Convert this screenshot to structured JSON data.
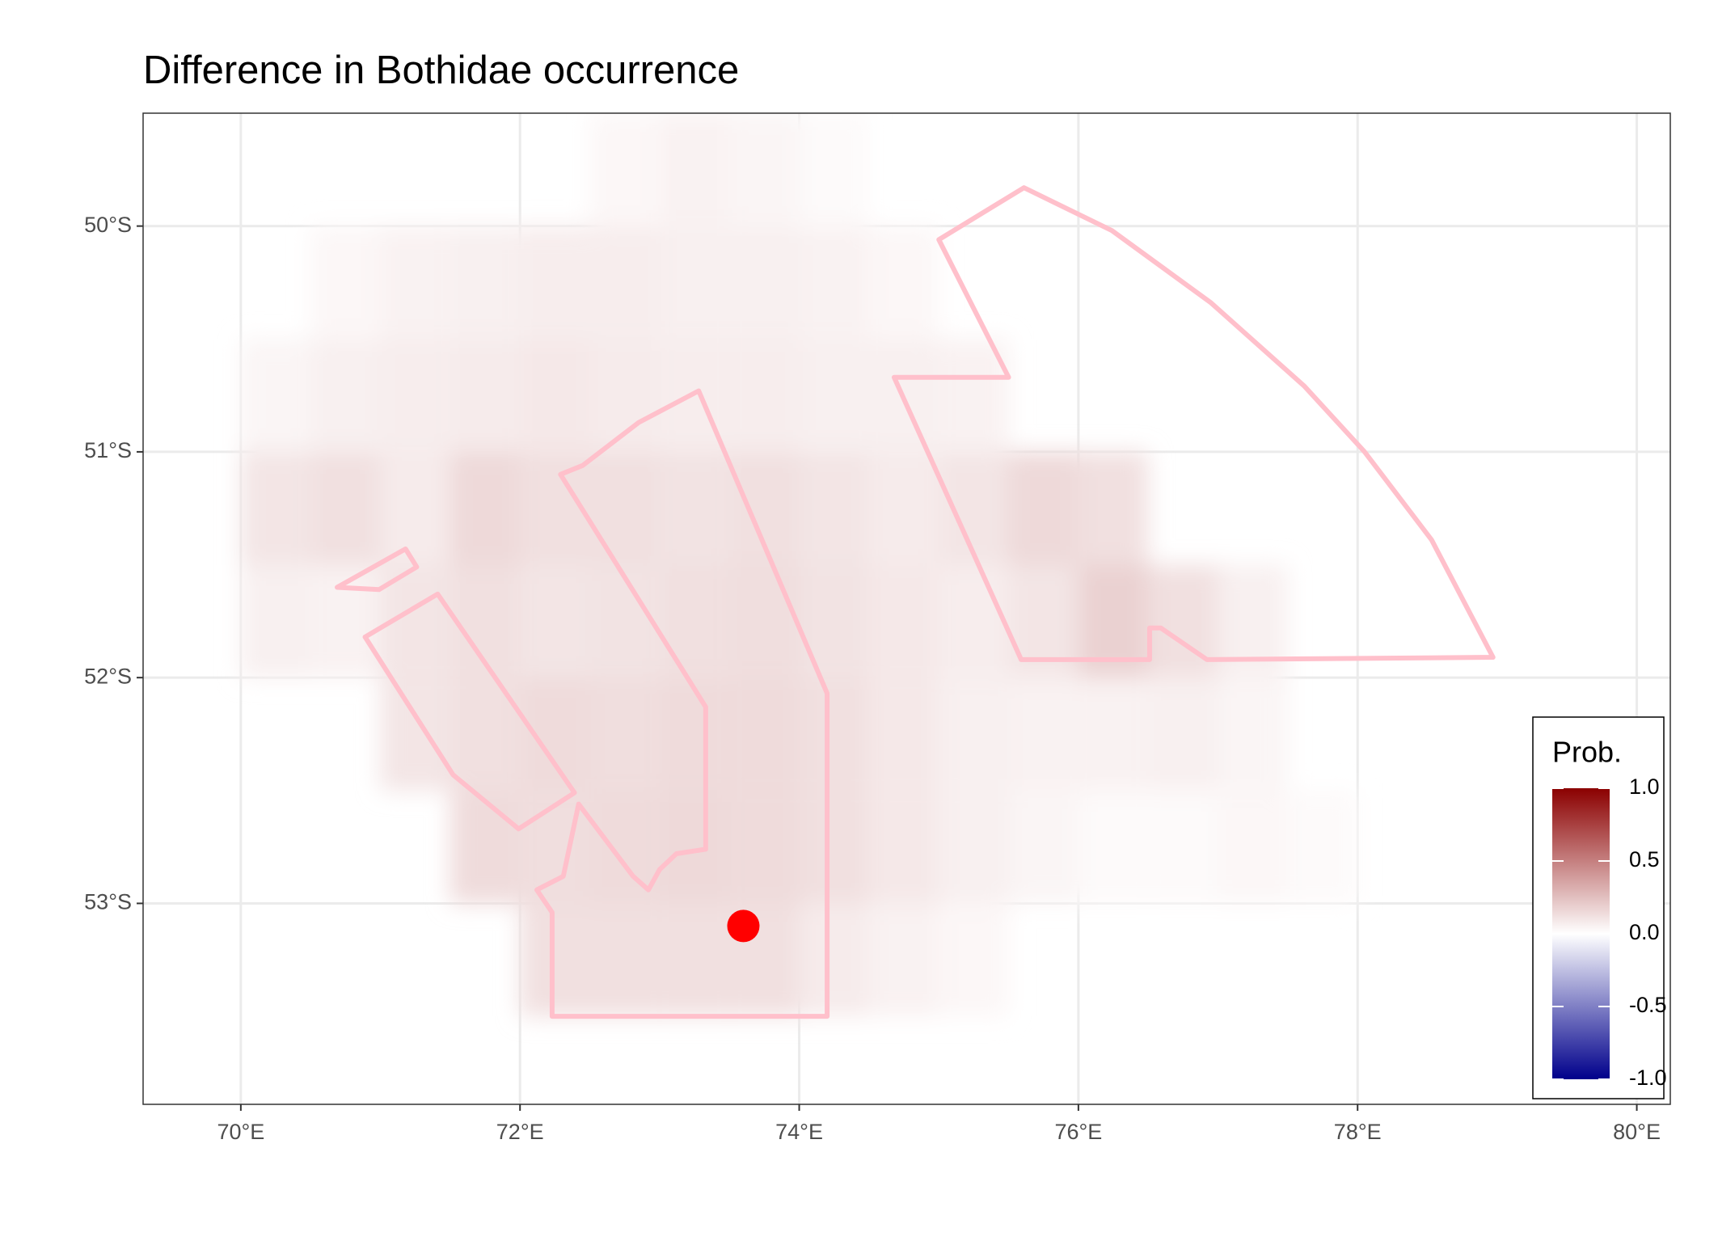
{
  "chart_data": {
    "type": "map",
    "title": "Difference in  Bothidae occurrence",
    "xlim": [
      69.3,
      80.24
    ],
    "ylim": [
      -53.89,
      -49.5
    ],
    "xticks": [
      {
        "value": 70,
        "label": "70°E"
      },
      {
        "value": 72,
        "label": "72°E"
      },
      {
        "value": 74,
        "label": "74°E"
      },
      {
        "value": 76,
        "label": "76°E"
      },
      {
        "value": 78,
        "label": "78°E"
      },
      {
        "value": 80,
        "label": "80°E"
      }
    ],
    "yticks": [
      {
        "value": -50,
        "label": "50°S"
      },
      {
        "value": -51,
        "label": "51°S"
      },
      {
        "value": -52,
        "label": "52°S"
      },
      {
        "value": -53,
        "label": "53°S"
      }
    ],
    "grid": true,
    "raster": {
      "lon": [
        70.25,
        70.75,
        71.25,
        71.75,
        72.25,
        72.75,
        73.25,
        73.75,
        74.25,
        74.75,
        75.25,
        75.75,
        76.25,
        76.75,
        77.25,
        77.75
      ],
      "lat": [
        -49.75,
        -50.25,
        -50.75,
        -51.25,
        -51.75,
        -52.25,
        -52.75,
        -53.25
      ],
      "values": [
        [
          null,
          null,
          null,
          null,
          null,
          0.03,
          0.05,
          0.04,
          0.02,
          null,
          null,
          null,
          null,
          null,
          null,
          null
        ],
        [
          null,
          0.03,
          0.05,
          0.06,
          0.07,
          0.07,
          0.06,
          0.06,
          0.05,
          0.03,
          null,
          null,
          null,
          null,
          null,
          null
        ],
        [
          0.04,
          0.06,
          0.07,
          0.08,
          0.09,
          0.08,
          0.07,
          0.07,
          0.06,
          0.06,
          0.05,
          null,
          null,
          null,
          null,
          null
        ],
        [
          0.1,
          0.12,
          0.08,
          0.15,
          0.12,
          0.12,
          0.11,
          0.12,
          0.1,
          0.08,
          0.1,
          0.15,
          0.12,
          null,
          null,
          null
        ],
        [
          0.06,
          0.05,
          0.1,
          0.12,
          0.1,
          0.11,
          0.12,
          0.13,
          0.11,
          0.09,
          0.07,
          0.1,
          0.18,
          0.12,
          0.06,
          null
        ],
        [
          null,
          null,
          0.1,
          0.12,
          0.14,
          0.13,
          0.14,
          0.14,
          0.12,
          0.09,
          0.06,
          0.05,
          0.05,
          0.06,
          0.04,
          null
        ],
        [
          null,
          null,
          null,
          0.14,
          0.13,
          0.14,
          0.15,
          0.14,
          0.12,
          0.09,
          0.06,
          0.04,
          0.02,
          0.02,
          0.03,
          0.02
        ],
        [
          null,
          null,
          null,
          null,
          0.12,
          0.12,
          0.12,
          0.12,
          0.08,
          0.05,
          0.03,
          null,
          null,
          null,
          null,
          null
        ]
      ]
    },
    "legend": {
      "title": "Prob.",
      "limits": [
        -1,
        1
      ],
      "colors": [
        "#00008b",
        "#ffffff",
        "#8b0000"
      ],
      "ticks": [
        {
          "value": 1,
          "label": "1.0"
        },
        {
          "value": 0.5,
          "label": "0.5"
        },
        {
          "value": 0,
          "label": "0.0"
        },
        {
          "value": -0.5,
          "label": "-0.5"
        },
        {
          "value": -1,
          "label": "-1.0"
        }
      ]
    },
    "region_color": "#ffc0cb",
    "regions": [
      {
        "lon": [
          75.0,
          75.61,
          76.24,
          76.95,
          77.62,
          78.05,
          78.53,
          78.97,
          76.92,
          76.59,
          76.51,
          76.51,
          75.59,
          74.68,
          75.5
        ],
        "lat": [
          -50.06,
          -49.83,
          -50.02,
          -50.34,
          -50.71,
          -51.0,
          -51.39,
          -51.91,
          -51.92,
          -51.78,
          -51.78,
          -51.92,
          -51.92,
          -50.67,
          -50.67
        ]
      },
      {
        "lon": [
          72.29,
          72.45,
          72.85,
          73.28,
          74.2,
          74.2,
          72.23,
          72.23,
          72.12,
          72.31,
          72.42,
          72.81,
          72.92,
          73.0,
          73.12,
          73.33,
          73.33
        ],
        "lat": [
          -51.1,
          -51.06,
          -50.87,
          -50.73,
          -52.07,
          -53.5,
          -53.5,
          -53.04,
          -52.94,
          -52.88,
          -52.56,
          -52.88,
          -52.94,
          -52.85,
          -52.78,
          -52.76,
          -52.13
        ]
      },
      {
        "lon": [
          70.89,
          71.41,
          72.39,
          71.99,
          71.52
        ],
        "lat": [
          -51.82,
          -51.63,
          -52.51,
          -52.67,
          -52.43
        ]
      },
      {
        "lon": [
          70.69,
          71.18,
          71.26,
          70.99
        ],
        "lat": [
          -51.6,
          -51.43,
          -51.51,
          -51.61
        ]
      }
    ],
    "point": {
      "lon": 73.6,
      "lat": -53.1,
      "color": "#ff0000"
    }
  }
}
